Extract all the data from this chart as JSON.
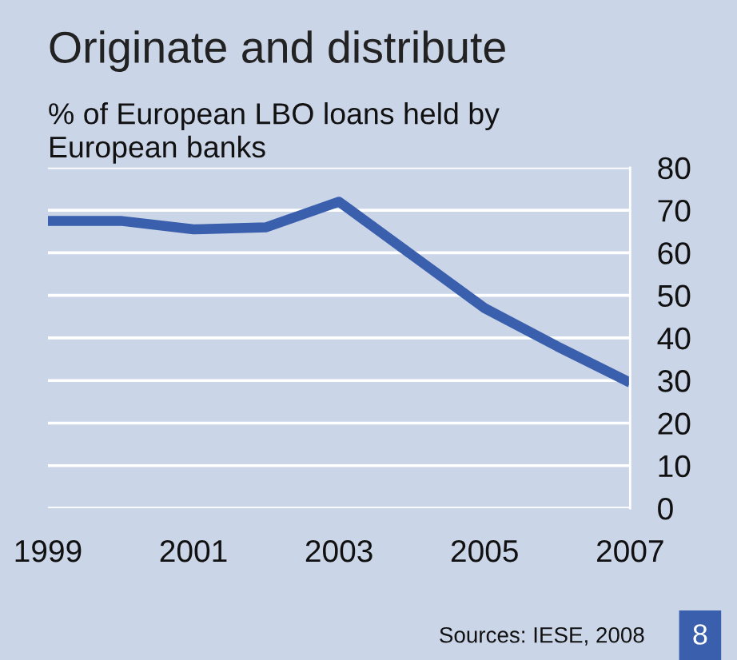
{
  "chart_data": {
    "type": "line",
    "title": "Originate and distribute",
    "subtitle": "% of European LBO loans held by\nEuropean banks",
    "x": [
      1999,
      2000,
      2001,
      2002,
      2003,
      2004,
      2005,
      2006,
      2007
    ],
    "series": [
      {
        "color": "#3a5fad",
        "values": [
          67.5,
          67.5,
          65.5,
          66,
          72,
          59.5,
          47,
          38,
          29.5
        ]
      }
    ],
    "xlim": [
      1999,
      2007
    ],
    "xticks": [
      1999,
      2001,
      2003,
      2005,
      2007
    ],
    "ylim": [
      0,
      80
    ],
    "yticks": [
      0,
      10,
      20,
      30,
      40,
      50,
      60,
      70,
      80
    ],
    "grid": "y",
    "legend": false,
    "marker": "none",
    "line_style": "solid",
    "annotations": [
      "Sources: IESE, 2008",
      "8"
    ]
  }
}
